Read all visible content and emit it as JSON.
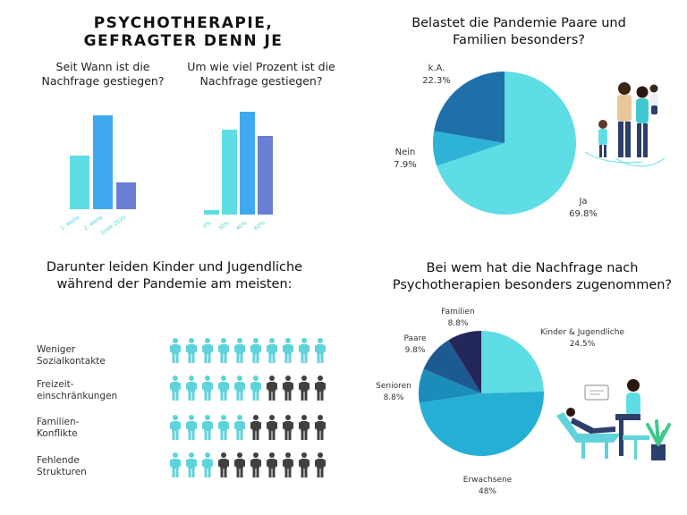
{
  "main_title": "PSYCHOTHERAPIE, GEFRAGTER DENN JE",
  "colors": {
    "cyan": "#5fdde5",
    "blue": "#3fa9f0",
    "indigo": "#6b7ed6",
    "pie_dark": "#1f6fa8",
    "pie_mid": "#2eb3d6",
    "icon_cyan": "#5fd3d9",
    "icon_dark": "#404040",
    "navy": "#24275a",
    "steel": "#1e5a92",
    "teal": "#1a8dba",
    "azure": "#26afd4"
  },
  "chart_data": [
    {
      "type": "bar",
      "title": "Seit Wann ist die Nachfrage gestiegen?",
      "categories": [
        "1. Welle",
        "2. Welle",
        "Ende 2020"
      ],
      "values": [
        60,
        105,
        30
      ],
      "colors": [
        "#5fdde5",
        "#3fa9f0",
        "#6b7ed6"
      ]
    },
    {
      "type": "bar",
      "title": "Um wie viel Prozent ist die Nachfrage gestiegen?",
      "categories": [
        "0%",
        "30%",
        "40%",
        "60%"
      ],
      "values": [
        5,
        95,
        115,
        88
      ],
      "colors": [
        "#5fdde5",
        "#5fdde5",
        "#3fa9f0",
        "#6b7ed6"
      ]
    },
    {
      "type": "pie",
      "title": "Belastet die Pandemie Paare und Familien besonders?",
      "slices": [
        {
          "label": "Ja",
          "value": 69.8,
          "display": "69.8%",
          "color": "#5fdde5"
        },
        {
          "label": "Nein",
          "value": 7.9,
          "display": "7.9%",
          "color": "#2eb3d6"
        },
        {
          "label": "k.A.",
          "value": 22.3,
          "display": "22.3%",
          "color": "#1f6fa8"
        }
      ]
    },
    {
      "type": "table",
      "title": "Darunter leiden Kinder und Jugendliche während der Pandemie am meisten:",
      "icons_per_row": 10,
      "rows": [
        {
          "label": "Weniger Sozialkontakte",
          "highlighted": 10
        },
        {
          "label": "Freizeit- einschränkungen",
          "highlighted": 6
        },
        {
          "label": "Familien- Konflikte",
          "highlighted": 5
        },
        {
          "label": "Fehlende Strukturen",
          "highlighted": 3
        }
      ]
    },
    {
      "type": "pie",
      "title": "Bei wem hat die Nachfrage nach Psychotherapien besonders zugenommen?",
      "slices": [
        {
          "label": "Kinder & Jugendliche",
          "value": 24.5,
          "display": "24.5%",
          "color": "#5fdde5"
        },
        {
          "label": "Erwachsene",
          "value": 48,
          "display": "48%",
          "color": "#26afd4"
        },
        {
          "label": "Senioren",
          "value": 8.8,
          "display": "8.8%",
          "color": "#1a8dba"
        },
        {
          "label": "Paare",
          "value": 9.8,
          "display": "9.8%",
          "color": "#1e5a92"
        },
        {
          "label": "Familien",
          "value": 8.8,
          "display": "8.8%",
          "color": "#24275a"
        }
      ]
    }
  ]
}
